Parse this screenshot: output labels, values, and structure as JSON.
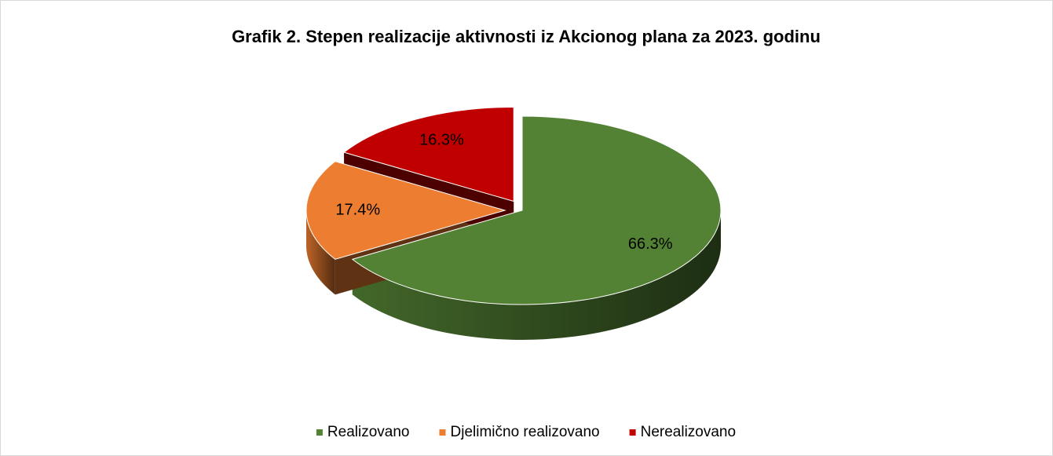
{
  "chart_data": {
    "type": "pie",
    "title": "Grafik 2. Stepen realizacije aktivnosti iz Akcionog plana za 2023. godinu",
    "categories": [
      "Realizovano",
      "Djelimično realizovano",
      "Nerealizovano"
    ],
    "values": [
      66.3,
      17.4,
      16.3
    ],
    "value_labels": [
      "66.3%",
      "17.4%",
      "16.3%"
    ],
    "colors": [
      "#548235",
      "#ed7d31",
      "#c00000"
    ],
    "legend": "bottom"
  }
}
